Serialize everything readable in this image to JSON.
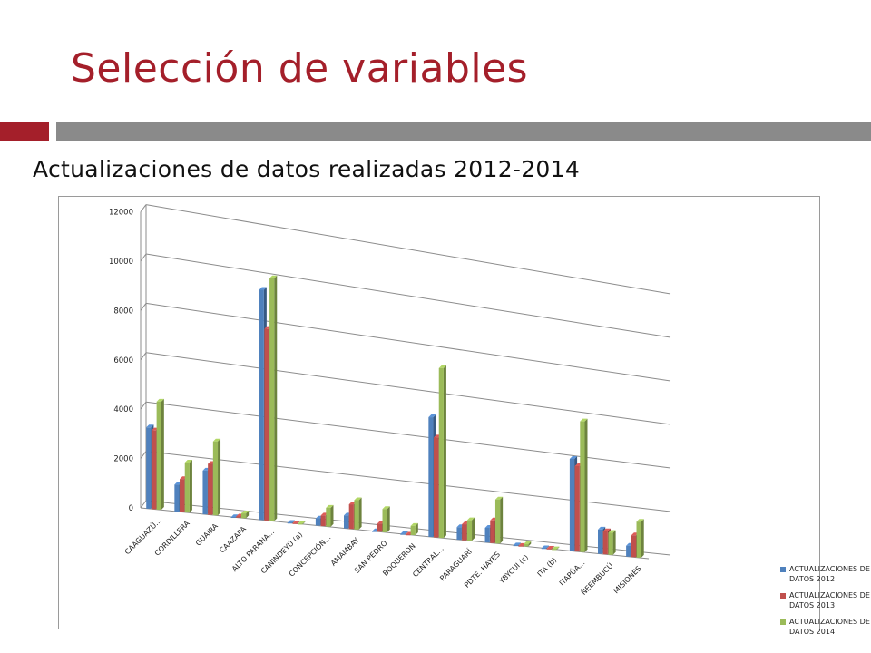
{
  "slide": {
    "title": "Selección de variables",
    "subtitle": "Actualizaciones de datos realizadas 2012-2014"
  },
  "chart_data": {
    "type": "bar",
    "categories": [
      "CAAGUAZÚ...",
      "CORDILLERA",
      "GUAIRA",
      "CAAZAPA",
      "ALTO PARANA...",
      "CANINDEYÚ (a)",
      "CONCEPCIÓN...",
      "AMAMBAY",
      "SAN PEDRO",
      "BOQUERON",
      "CENTRAL...",
      "PARAGUARÍ",
      "PDTE. HAYES",
      "YBYCUI (c)",
      "ITA (b)",
      "ITAPÚA...",
      "ÑEEMBUCÚ",
      "MISIONES"
    ],
    "series": [
      {
        "name": "ACTUALIZACIONES DE DATOS 2012",
        "color": "#4f81bd",
        "values": [
          3300,
          1100,
          1800,
          0,
          9600,
          0,
          300,
          550,
          0,
          0,
          5200,
          550,
          650,
          0,
          0,
          4150,
          1100,
          500
        ]
      },
      {
        "name": "ACTUALIZACIONES DE DATOS 2013",
        "color": "#c0504d",
        "values": [
          3200,
          1350,
          2100,
          50,
          8000,
          0,
          450,
          1050,
          350,
          0,
          4350,
          700,
          1000,
          0,
          0,
          3850,
          1050,
          1000
        ]
      },
      {
        "name": "ACTUALIZACIONES DE DATOS 2014",
        "color": "#9bbb59",
        "values": [
          4400,
          2050,
          3050,
          200,
          10150,
          0,
          800,
          1250,
          1000,
          400,
          7400,
          900,
          1950,
          100,
          0,
          5900,
          1000,
          1650
        ]
      }
    ],
    "yticks": [
      0,
      2000,
      4000,
      6000,
      8000,
      10000,
      12000
    ],
    "ylim": [
      0,
      12000
    ],
    "legend_position": "right",
    "grid": true,
    "xlabel": "",
    "ylabel": ""
  }
}
